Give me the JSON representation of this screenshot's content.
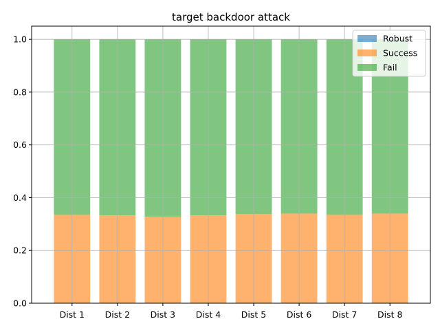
{
  "chart_data": {
    "type": "bar",
    "stacked": true,
    "title": "target backdoor attack",
    "xlabel": "",
    "ylabel": "",
    "categories": [
      "Dist 1",
      "Dist 2",
      "Dist 3",
      "Dist 4",
      "Dist 5",
      "Dist 6",
      "Dist 7",
      "Dist 8"
    ],
    "ylim": [
      0,
      1.05
    ],
    "yticks": [
      "0.0",
      "0.2",
      "0.4",
      "0.6",
      "0.8",
      "1.0"
    ],
    "grid": true,
    "legend_position": "top-right",
    "series": [
      {
        "name": "Robust",
        "color": "#1f77b4",
        "values": [
          0,
          0,
          0,
          0,
          0,
          0,
          0,
          0
        ]
      },
      {
        "name": "Success",
        "color": "#ff7f0e",
        "values": [
          0.335,
          0.333,
          0.328,
          0.333,
          0.338,
          0.34,
          0.335,
          0.34
        ]
      },
      {
        "name": "Fail",
        "color": "#2ca02c",
        "values": [
          0.665,
          0.667,
          0.672,
          0.667,
          0.662,
          0.66,
          0.665,
          0.66
        ]
      }
    ]
  }
}
